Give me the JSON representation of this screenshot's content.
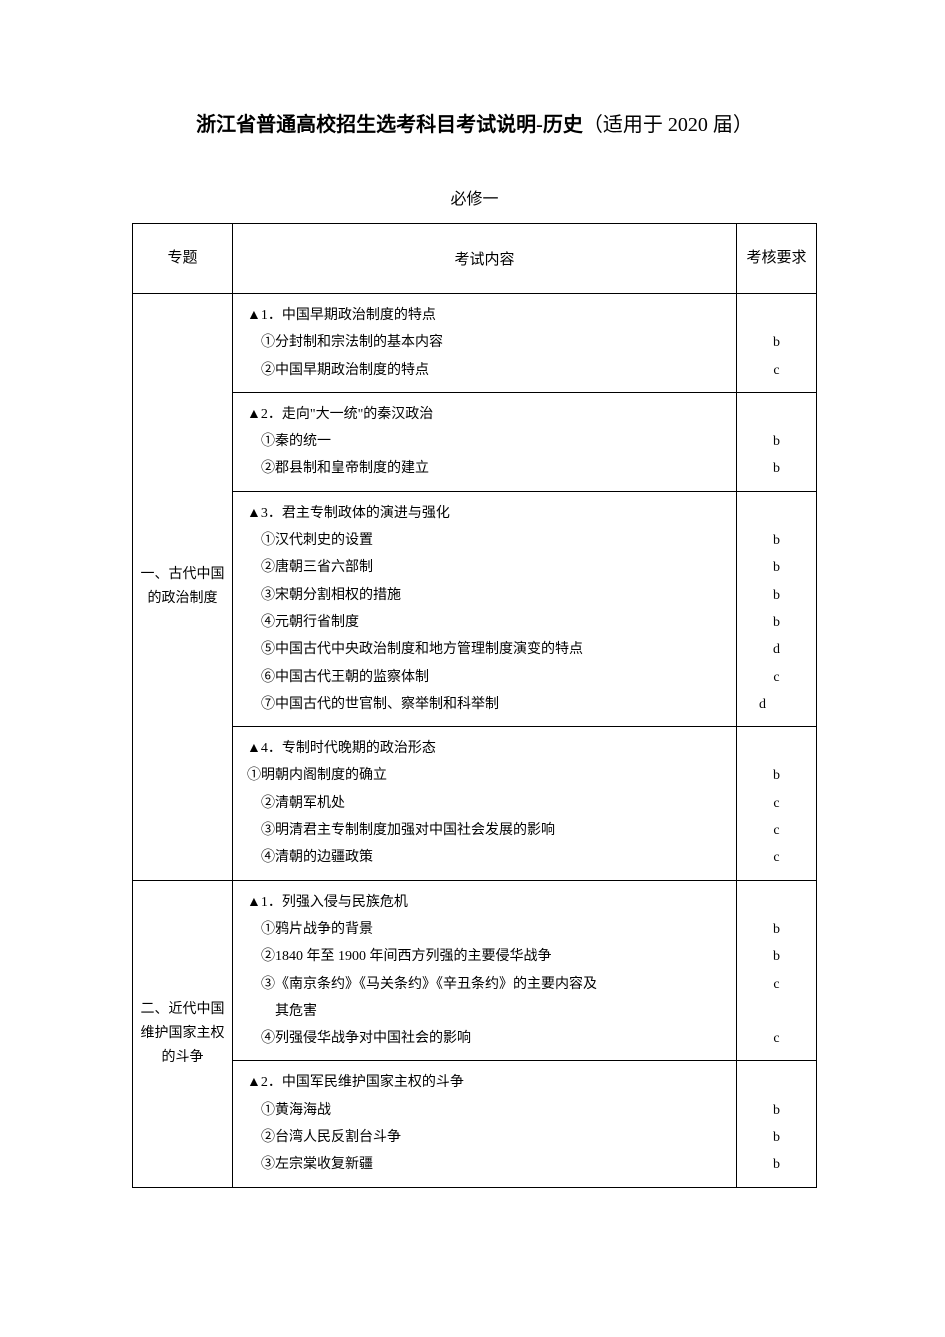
{
  "page": {
    "title_bold": "浙江省普通高校招生选考科目考试说明-历史",
    "title_normal": "（适用于 2020 届）",
    "subtitle": "必修一",
    "colors": {
      "background": "#ffffff",
      "text": "#000000",
      "border": "#000000"
    },
    "fonts": {
      "title_size": 20,
      "subtitle_size": 16,
      "body_size": 14,
      "family": "SimSun"
    }
  },
  "table": {
    "headers": {
      "topic": "专题",
      "content": "考试内容",
      "requirement": "考核要求"
    },
    "topics": [
      {
        "label": "一、古代中国的政治制度",
        "sections": [
          {
            "lines": [
              {
                "text": "▲1．中国早期政治制度的特点",
                "indent": 0,
                "req": ""
              },
              {
                "text": "①分封制和宗法制的基本内容",
                "indent": 1,
                "req": "b"
              },
              {
                "text": "②中国早期政治制度的特点",
                "indent": 1,
                "req": "c"
              }
            ]
          },
          {
            "lines": [
              {
                "text": "▲2．走向\"大一统\"的秦汉政治",
                "indent": 0,
                "req": ""
              },
              {
                "text": "①秦的统一",
                "indent": 1,
                "req": "b"
              },
              {
                "text": "②郡县制和皇帝制度的建立",
                "indent": 1,
                "req": "b"
              }
            ]
          },
          {
            "lines": [
              {
                "text": "▲3．君主专制政体的演进与强化",
                "indent": 0,
                "req": ""
              },
              {
                "text": "①汉代刺史的设置",
                "indent": 1,
                "req": "b"
              },
              {
                "text": "②唐朝三省六部制",
                "indent": 1,
                "req": "b"
              },
              {
                "text": "③宋朝分割相权的措施",
                "indent": 1,
                "req": "b"
              },
              {
                "text": "④元朝行省制度",
                "indent": 1,
                "req": "b"
              },
              {
                "text": "⑤中国古代中央政治制度和地方管理制度演变的特点",
                "indent": 1,
                "req": "d"
              },
              {
                "text": "⑥中国古代王朝的监察体制",
                "indent": 1,
                "req": "c"
              },
              {
                "text": "⑦中国古代的世官制、察举制和科举制",
                "indent": 1,
                "req": "d",
                "req_align": "left"
              }
            ]
          },
          {
            "lines": [
              {
                "text": "▲4．专制时代晚期的政治形态",
                "indent": 0,
                "req": ""
              },
              {
                "text": "①明朝内阁制度的确立",
                "indent": 0,
                "req": "b"
              },
              {
                "text": "②清朝军机处",
                "indent": 1,
                "req": "c"
              },
              {
                "text": "③明清君主专制制度加强对中国社会发展的影响",
                "indent": 1,
                "req": "c"
              },
              {
                "text": "④清朝的边疆政策",
                "indent": 1,
                "req": "c"
              }
            ]
          }
        ]
      },
      {
        "label": "二、近代中国维护国家主权的斗争",
        "sections": [
          {
            "lines": [
              {
                "text": "▲1．列强入侵与民族危机",
                "indent": 0,
                "req": ""
              },
              {
                "text": "①鸦片战争的背景",
                "indent": 1,
                "req": "b"
              },
              {
                "text": "②1840 年至 1900 年间西方列强的主要侵华战争",
                "indent": 1,
                "req": "b"
              },
              {
                "text": "③《南京条约》《马关条约》《辛丑条约》的主要内容及",
                "indent": 1,
                "req": "c"
              },
              {
                "text": "其危害",
                "indent": 2,
                "req": ""
              },
              {
                "text": "④列强侵华战争对中国社会的影响",
                "indent": 1,
                "req": "c"
              }
            ]
          },
          {
            "lines": [
              {
                "text": "▲2．中国军民维护国家主权的斗争",
                "indent": 0,
                "req": ""
              },
              {
                "text": "①黄海海战",
                "indent": 1,
                "req": "b"
              },
              {
                "text": "②台湾人民反割台斗争",
                "indent": 1,
                "req": "b"
              },
              {
                "text": "③左宗棠收复新疆",
                "indent": 1,
                "req": "b"
              }
            ]
          }
        ]
      }
    ]
  }
}
